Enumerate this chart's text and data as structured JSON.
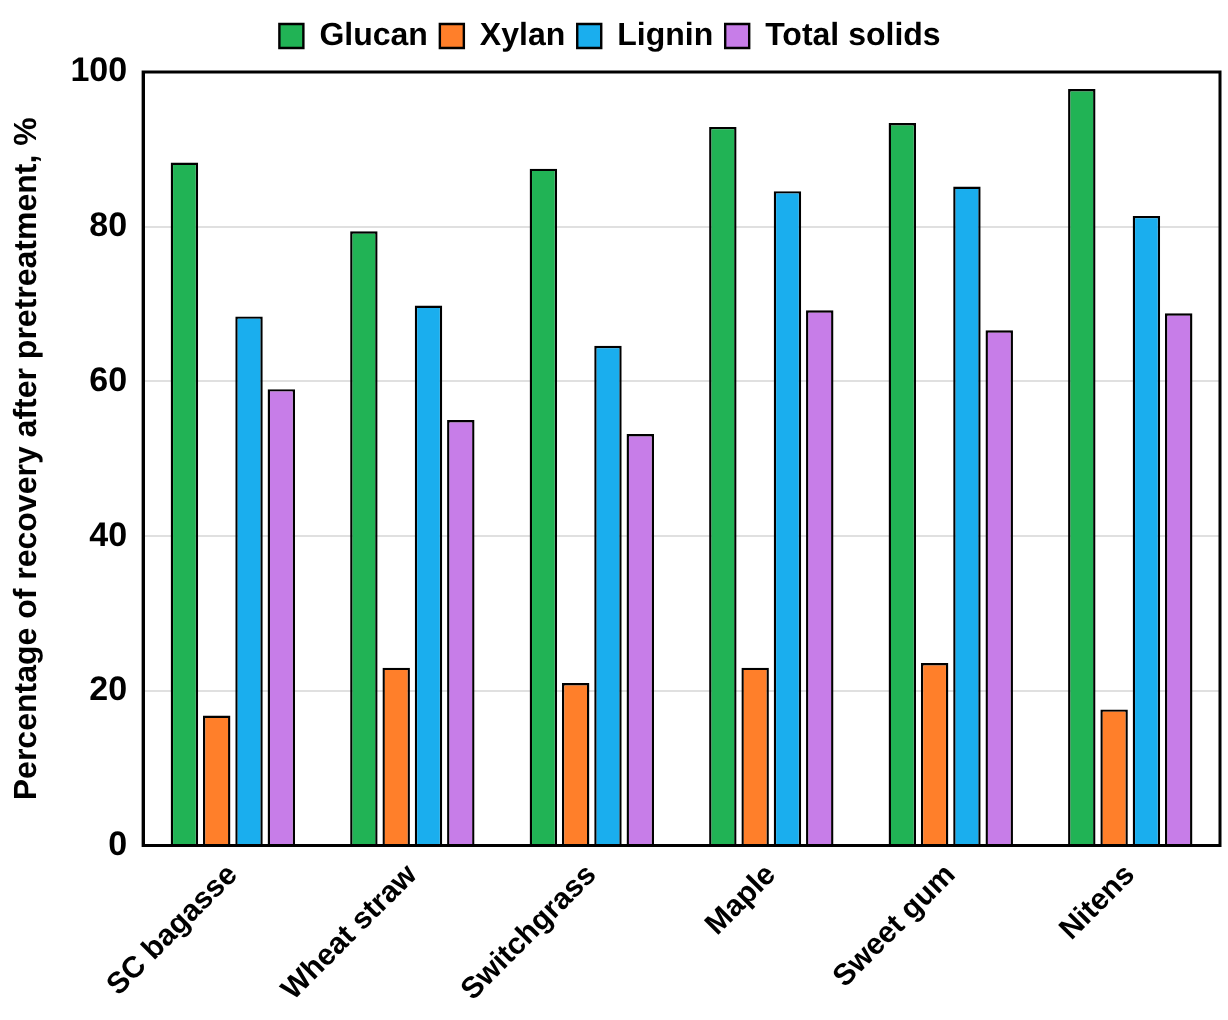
{
  "chart_data": {
    "type": "bar",
    "ylabel": "Percentage of recovery after pretreatment, %",
    "categories": [
      "SC bagasse",
      "Wheat straw",
      "Switchgrass",
      "Maple",
      "Sweet gum",
      "Nitens"
    ],
    "series": [
      {
        "name": "Glucan",
        "color": "#21b355",
        "values": [
          88.3,
          79.4,
          87.5,
          92.9,
          93.4,
          97.8
        ]
      },
      {
        "name": "Xylan",
        "color": "#ff7f2a",
        "values": [
          16.8,
          23,
          21,
          23,
          23.6,
          17.6
        ]
      },
      {
        "name": "Lignin",
        "color": "#1aaeee",
        "values": [
          68.4,
          69.8,
          64.6,
          84.6,
          85.2,
          81.4
        ]
      },
      {
        "name": "Total solids",
        "color": "#c77de8",
        "values": [
          59,
          55,
          53.2,
          69.2,
          66.6,
          68.8
        ]
      }
    ],
    "ylim": [
      0,
      100
    ],
    "yticks": [
      0,
      20,
      40,
      60,
      80,
      100
    ],
    "grid": "y",
    "legend": "top"
  }
}
